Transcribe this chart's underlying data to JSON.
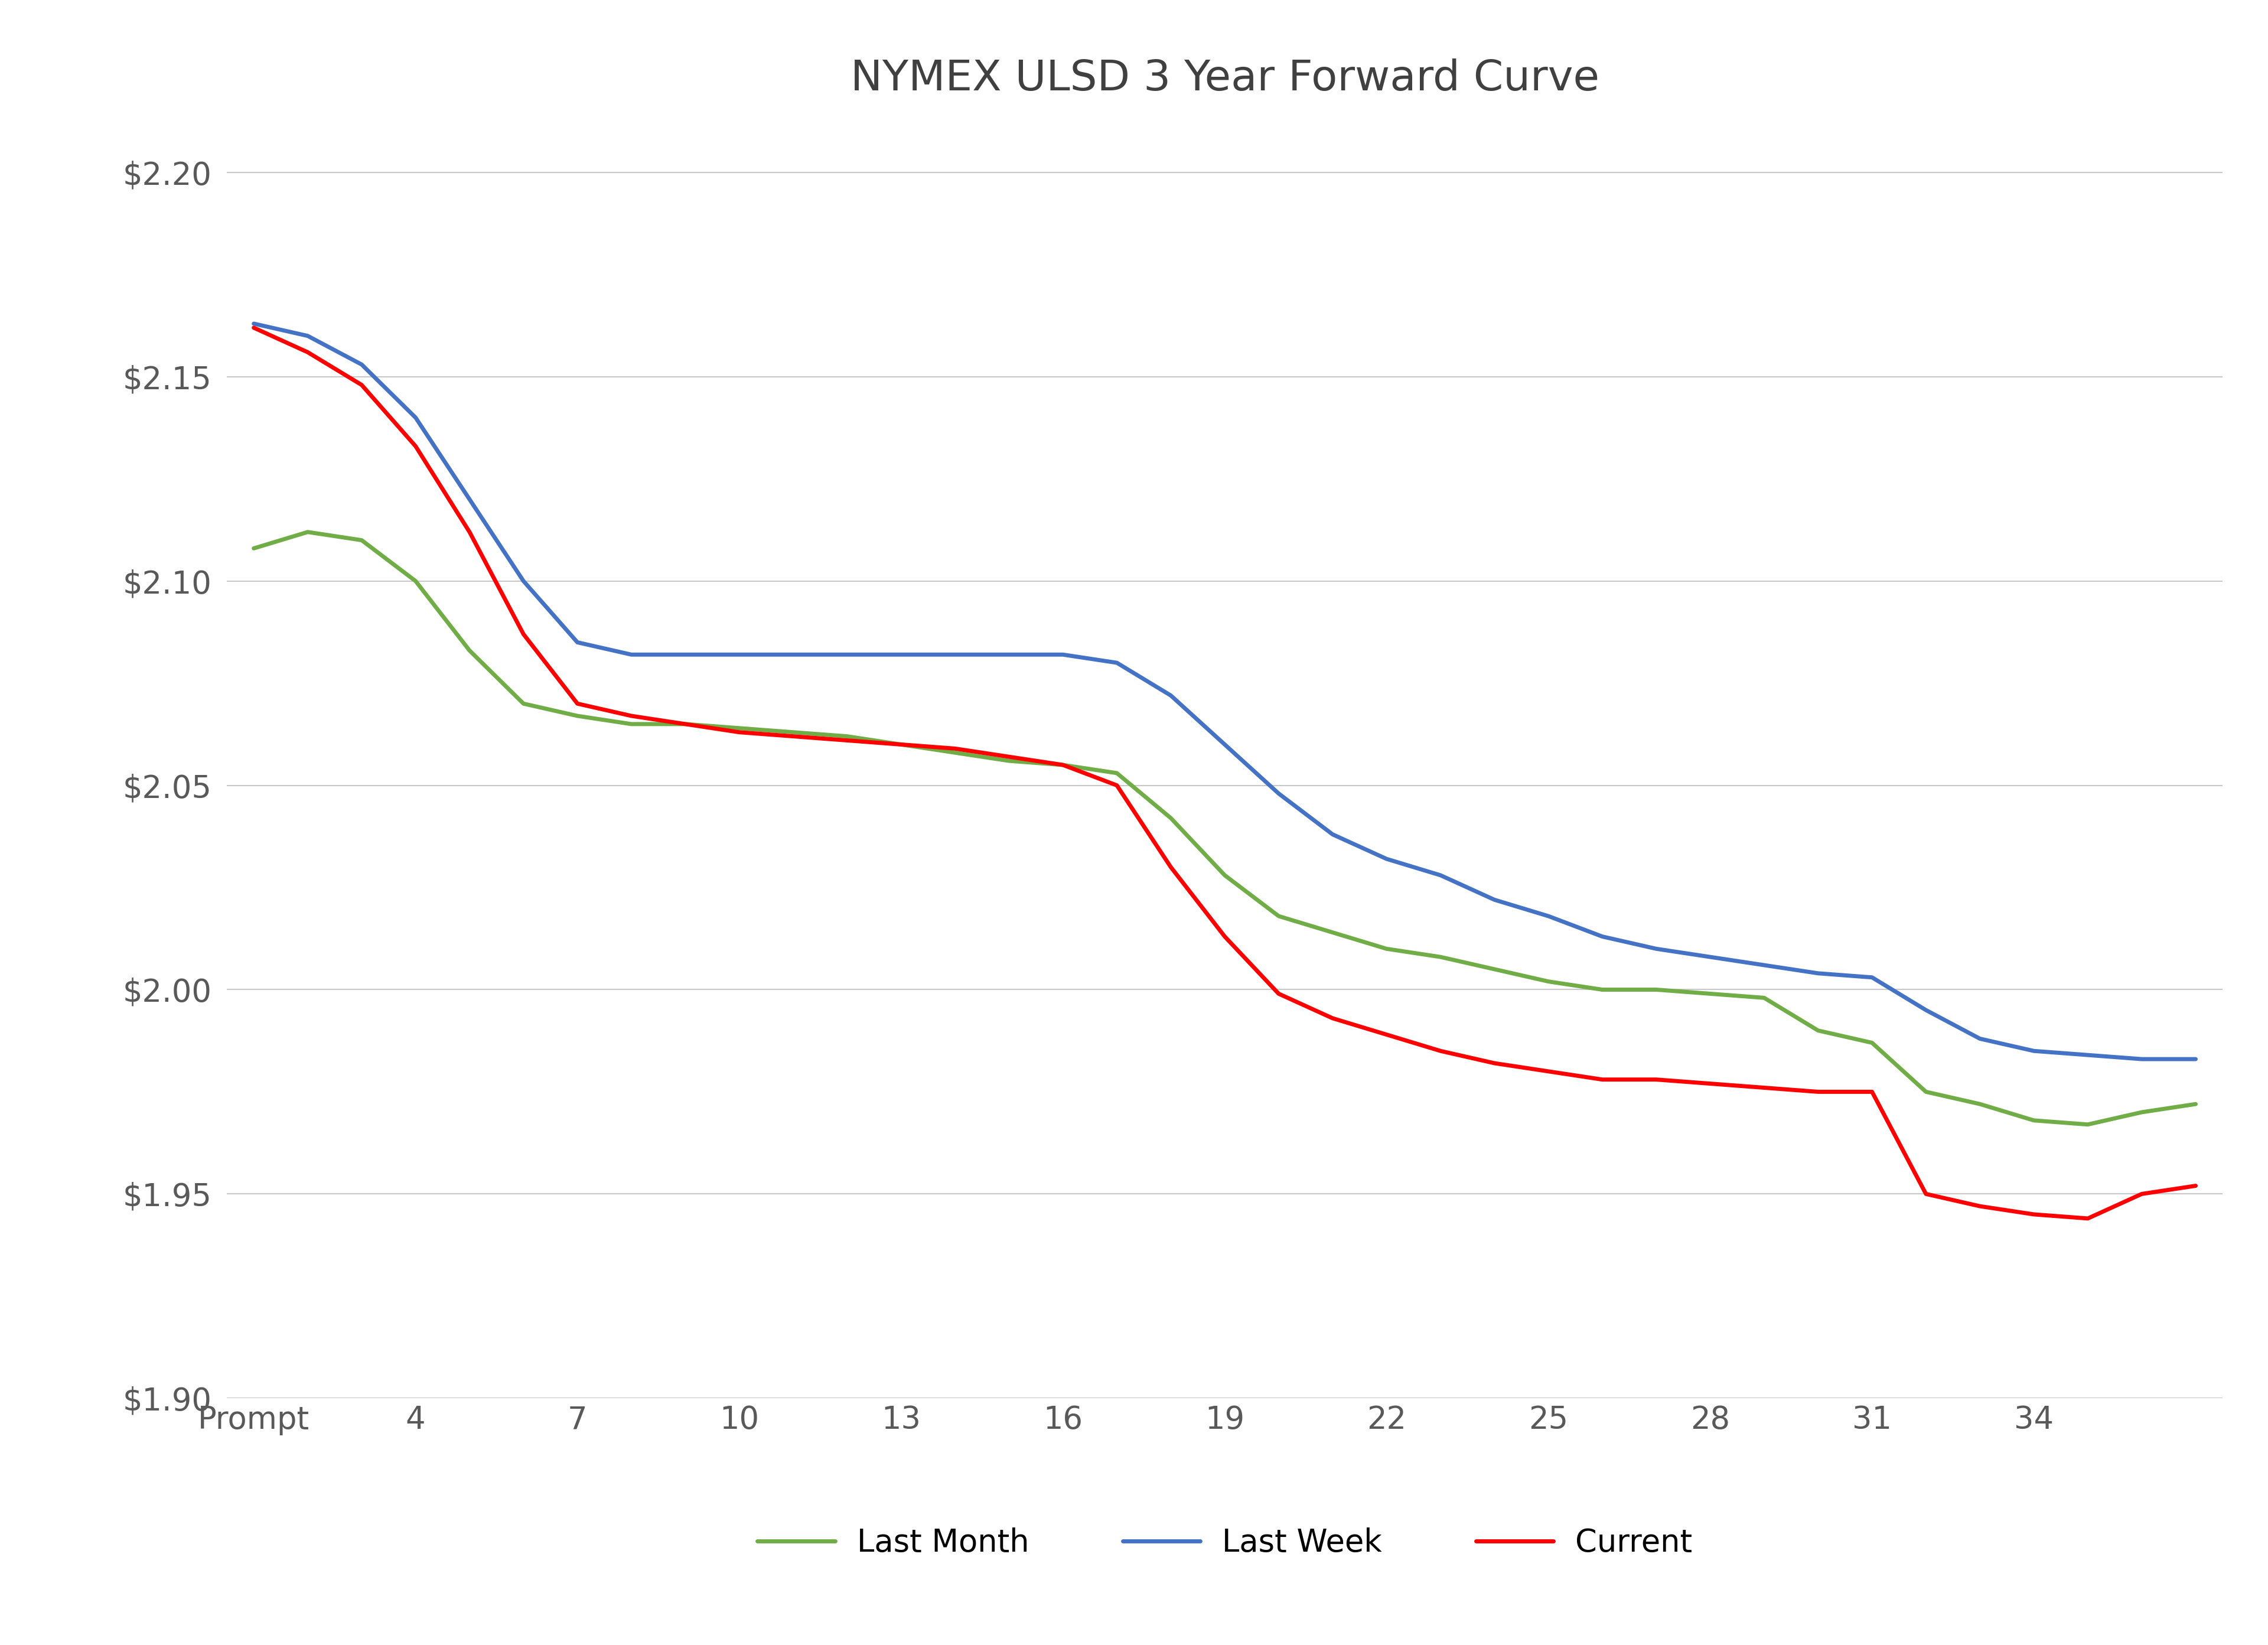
{
  "title": "NYMEX ULSD 3 Year Forward Curve",
  "title_fontsize": 52,
  "x_labels": [
    "Prompt",
    "4",
    "7",
    "10",
    "13",
    "16",
    "19",
    "22",
    "25",
    "28",
    "31",
    "34",
    ""
  ],
  "x_ticks": [
    0,
    3,
    6,
    9,
    12,
    15,
    18,
    21,
    24,
    27,
    30,
    33,
    36
  ],
  "ylim": [
    1.9,
    2.21
  ],
  "yticks": [
    1.9,
    1.95,
    2.0,
    2.05,
    2.1,
    2.15,
    2.2
  ],
  "background_color": "#ffffff",
  "grid_color": "#c8c8c8",
  "series": {
    "last_month": {
      "label": "Last Month",
      "color": "#70ad47",
      "linewidth": 5.0,
      "x": [
        0,
        1,
        2,
        3,
        4,
        5,
        6,
        7,
        8,
        9,
        10,
        11,
        12,
        13,
        14,
        15,
        16,
        17,
        18,
        19,
        20,
        21,
        22,
        23,
        24,
        25,
        26,
        27,
        28,
        29,
        30,
        31,
        32,
        33,
        34,
        35,
        36
      ],
      "y": [
        2.108,
        2.112,
        2.11,
        2.1,
        2.083,
        2.07,
        2.067,
        2.065,
        2.065,
        2.064,
        2.063,
        2.062,
        2.06,
        2.058,
        2.056,
        2.055,
        2.053,
        2.042,
        2.028,
        2.018,
        2.014,
        2.01,
        2.008,
        2.005,
        2.002,
        2.0,
        2.0,
        1.999,
        1.998,
        1.99,
        1.987,
        1.975,
        1.972,
        1.968,
        1.967,
        1.97,
        1.972
      ]
    },
    "last_week": {
      "label": "Last Week",
      "color": "#4472c4",
      "linewidth": 5.0,
      "x": [
        0,
        1,
        2,
        3,
        4,
        5,
        6,
        7,
        8,
        9,
        10,
        11,
        12,
        13,
        14,
        15,
        16,
        17,
        18,
        19,
        20,
        21,
        22,
        23,
        24,
        25,
        26,
        27,
        28,
        29,
        30,
        31,
        32,
        33,
        34,
        35,
        36
      ],
      "y": [
        2.163,
        2.16,
        2.153,
        2.14,
        2.12,
        2.1,
        2.085,
        2.082,
        2.082,
        2.082,
        2.082,
        2.082,
        2.082,
        2.082,
        2.082,
        2.082,
        2.08,
        2.072,
        2.06,
        2.048,
        2.038,
        2.032,
        2.028,
        2.022,
        2.018,
        2.013,
        2.01,
        2.008,
        2.006,
        2.004,
        2.003,
        1.995,
        1.988,
        1.985,
        1.984,
        1.983,
        1.983
      ]
    },
    "current": {
      "label": "Current",
      "color": "#ff0000",
      "linewidth": 5.0,
      "x": [
        0,
        1,
        2,
        3,
        4,
        5,
        6,
        7,
        8,
        9,
        10,
        11,
        12,
        13,
        14,
        15,
        16,
        17,
        18,
        19,
        20,
        21,
        22,
        23,
        24,
        25,
        26,
        27,
        28,
        29,
        30,
        31,
        32,
        33,
        34,
        35,
        36
      ],
      "y": [
        2.162,
        2.156,
        2.148,
        2.133,
        2.112,
        2.087,
        2.07,
        2.067,
        2.065,
        2.063,
        2.062,
        2.061,
        2.06,
        2.059,
        2.057,
        2.055,
        2.05,
        2.03,
        2.013,
        1.999,
        1.993,
        1.989,
        1.985,
        1.982,
        1.98,
        1.978,
        1.978,
        1.977,
        1.976,
        1.975,
        1.975,
        1.95,
        1.947,
        1.945,
        1.944,
        1.95,
        1.952
      ]
    }
  },
  "legend_fontsize": 38,
  "tick_fontsize": 38,
  "axis_label_color": "#595959",
  "grid_linewidth": 1.5
}
